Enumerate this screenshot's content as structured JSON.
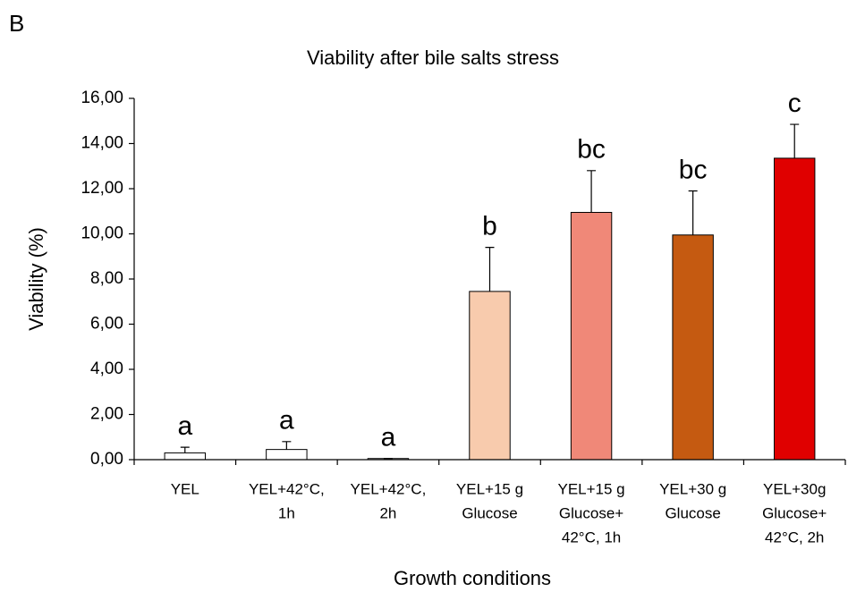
{
  "chart_data": {
    "type": "bar",
    "panel_label": "B",
    "title": "Viability after bile salts stress",
    "y_label": "Viability (%)",
    "x_label": "Growth conditions",
    "categories": [
      [
        "YEL"
      ],
      [
        "YEL+42°C,",
        "1h"
      ],
      [
        "YEL+42°C,",
        "2h"
      ],
      [
        "YEL+15 g",
        "Glucose"
      ],
      [
        "YEL+15 g",
        "Glucose+",
        "42°C, 1h"
      ],
      [
        "YEL+30 g",
        "Glucose"
      ],
      [
        "YEL+30g",
        "Glucose+",
        "42°C, 2h"
      ]
    ],
    "values": [
      0.3,
      0.45,
      0.05,
      7.45,
      10.95,
      9.95,
      13.35
    ],
    "errors": [
      0.25,
      0.35,
      0,
      1.95,
      1.85,
      1.95,
      1.5
    ],
    "colors": [
      "#ffffff",
      "#ffffff",
      "#ffffff",
      "#f8cbad",
      "#f08878",
      "#c55a11",
      "#e00000"
    ],
    "annotations": [
      "a",
      "a",
      "a",
      "b",
      "bc",
      "bc",
      "c"
    ],
    "ylim": [
      0,
      16
    ],
    "yticks": [
      {
        "value": 0,
        "label": "0,00"
      },
      {
        "value": 2,
        "label": "2,00"
      },
      {
        "value": 4,
        "label": "4,00"
      },
      {
        "value": 6,
        "label": "6,00"
      },
      {
        "value": 8,
        "label": "8,00"
      },
      {
        "value": 10,
        "label": "10,00"
      },
      {
        "value": 12,
        "label": "12,00"
      },
      {
        "value": 14,
        "label": "14,00"
      },
      {
        "value": 16,
        "label": "16,00"
      }
    ],
    "grid": false
  }
}
